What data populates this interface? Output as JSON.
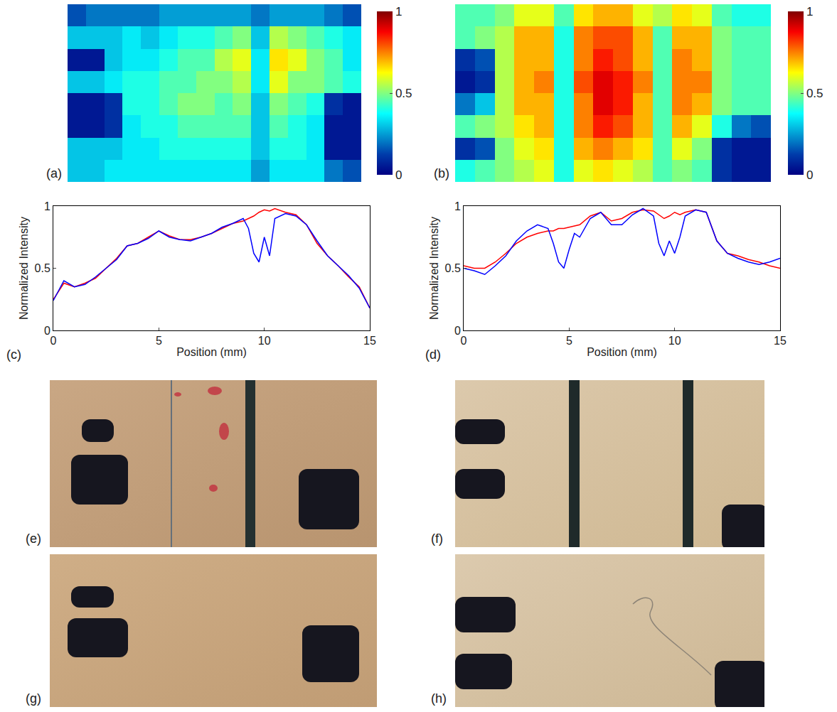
{
  "chart_data": [
    {
      "type": "heatmap",
      "panel_label": "(a)",
      "tick_labels": false,
      "zlim": [
        0,
        1
      ],
      "zticks": [
        0,
        0.5,
        1
      ],
      "z": [
        [
          0.15,
          0.2,
          0.2,
          0.2,
          0.2,
          0.25,
          0.25,
          0.25,
          0.25,
          0.25,
          0.2,
          0.25,
          0.25,
          0.25,
          0.2,
          0.15
        ],
        [
          0.3,
          0.3,
          0.3,
          0.35,
          0.3,
          0.35,
          0.4,
          0.4,
          0.45,
          0.5,
          0.3,
          0.55,
          0.5,
          0.45,
          0.4,
          0.35
        ],
        [
          0.05,
          0.05,
          0.3,
          0.35,
          0.35,
          0.4,
          0.45,
          0.45,
          0.55,
          0.6,
          0.35,
          0.65,
          0.6,
          0.5,
          0.45,
          0.35
        ],
        [
          0.3,
          0.3,
          0.35,
          0.4,
          0.4,
          0.45,
          0.45,
          0.5,
          0.5,
          0.55,
          0.35,
          0.6,
          0.5,
          0.5,
          0.45,
          0.4
        ],
        [
          0.05,
          0.05,
          0.1,
          0.4,
          0.4,
          0.45,
          0.5,
          0.5,
          0.45,
          0.5,
          0.3,
          0.5,
          0.45,
          0.4,
          0.1,
          0.05
        ],
        [
          0.05,
          0.05,
          0.1,
          0.35,
          0.4,
          0.4,
          0.45,
          0.45,
          0.45,
          0.45,
          0.3,
          0.45,
          0.4,
          0.35,
          0.05,
          0.05
        ],
        [
          0.3,
          0.3,
          0.3,
          0.35,
          0.35,
          0.4,
          0.4,
          0.4,
          0.4,
          0.4,
          0.3,
          0.4,
          0.4,
          0.35,
          0.05,
          0.05
        ],
        [
          0.3,
          0.3,
          0.35,
          0.35,
          0.35,
          0.35,
          0.35,
          0.35,
          0.35,
          0.35,
          0.25,
          0.35,
          0.35,
          0.35,
          0.2,
          0.15
        ]
      ]
    },
    {
      "type": "heatmap",
      "panel_label": "(b)",
      "tick_labels": false,
      "zlim": [
        0,
        1
      ],
      "zticks": [
        0,
        0.5,
        1
      ],
      "z": [
        [
          0.45,
          0.45,
          0.5,
          0.6,
          0.6,
          0.45,
          0.65,
          0.7,
          0.7,
          0.6,
          0.55,
          0.65,
          0.6,
          0.45,
          0.4,
          0.4
        ],
        [
          0.45,
          0.5,
          0.55,
          0.7,
          0.7,
          0.4,
          0.75,
          0.8,
          0.8,
          0.7,
          0.45,
          0.7,
          0.7,
          0.5,
          0.45,
          0.45
        ],
        [
          0.1,
          0.15,
          0.55,
          0.7,
          0.7,
          0.4,
          0.75,
          0.85,
          0.8,
          0.7,
          0.45,
          0.75,
          0.7,
          0.5,
          0.45,
          0.45
        ],
        [
          0.05,
          0.1,
          0.55,
          0.7,
          0.75,
          0.4,
          0.8,
          0.9,
          0.85,
          0.75,
          0.45,
          0.75,
          0.75,
          0.5,
          0.45,
          0.45
        ],
        [
          0.2,
          0.3,
          0.55,
          0.7,
          0.7,
          0.4,
          0.75,
          0.9,
          0.85,
          0.7,
          0.45,
          0.75,
          0.7,
          0.5,
          0.45,
          0.45
        ],
        [
          0.45,
          0.5,
          0.55,
          0.65,
          0.7,
          0.4,
          0.75,
          0.85,
          0.8,
          0.7,
          0.45,
          0.7,
          0.6,
          0.4,
          0.2,
          0.15
        ],
        [
          0.1,
          0.15,
          0.5,
          0.6,
          0.65,
          0.4,
          0.7,
          0.75,
          0.7,
          0.65,
          0.45,
          0.6,
          0.5,
          0.1,
          0.05,
          0.05
        ],
        [
          0.4,
          0.45,
          0.5,
          0.55,
          0.6,
          0.4,
          0.6,
          0.65,
          0.6,
          0.55,
          0.45,
          0.5,
          0.45,
          0.1,
          0.05,
          0.05
        ]
      ]
    },
    {
      "type": "line",
      "panel_label": "(c)",
      "x_label": "Position (mm)",
      "y_label": "Normalized Intensity",
      "xlim": [
        0,
        15
      ],
      "xticks": [
        0,
        5,
        10,
        15
      ],
      "ylim": [
        0,
        1
      ],
      "yticks": [
        0,
        0.5,
        1
      ],
      "grid": false,
      "x": [
        0,
        0.5,
        1,
        1.5,
        2,
        2.5,
        3,
        3.5,
        4,
        4.5,
        5,
        5.5,
        6,
        6.5,
        7,
        7.5,
        8,
        8.5,
        9,
        9.25,
        9.5,
        9.75,
        10,
        10.25,
        10.5,
        11,
        11.5,
        12,
        12.5,
        13,
        13.5,
        14,
        14.5,
        15
      ],
      "series": [
        {
          "color": "#ff0000",
          "values": [
            0.25,
            0.38,
            0.35,
            0.38,
            0.42,
            0.5,
            0.58,
            0.68,
            0.7,
            0.75,
            0.8,
            0.76,
            0.73,
            0.73,
            0.75,
            0.78,
            0.82,
            0.86,
            0.88,
            0.9,
            0.92,
            0.95,
            0.97,
            0.96,
            0.98,
            0.95,
            0.93,
            0.85,
            0.7,
            0.6,
            0.52,
            0.43,
            0.35,
            0.18
          ]
        },
        {
          "color": "#0000ff",
          "values": [
            0.24,
            0.4,
            0.35,
            0.37,
            0.43,
            0.5,
            0.57,
            0.68,
            0.7,
            0.74,
            0.8,
            0.75,
            0.73,
            0.72,
            0.75,
            0.78,
            0.83,
            0.86,
            0.9,
            0.82,
            0.62,
            0.55,
            0.75,
            0.6,
            0.9,
            0.94,
            0.92,
            0.85,
            0.72,
            0.6,
            0.52,
            0.44,
            0.34,
            0.18
          ]
        }
      ]
    },
    {
      "type": "line",
      "panel_label": "(d)",
      "x_label": "Position (mm)",
      "y_label": "Normalized Intensity",
      "xlim": [
        0,
        15
      ],
      "xticks": [
        0,
        5,
        10,
        15
      ],
      "ylim": [
        0,
        1
      ],
      "yticks": [
        0,
        0.5,
        1
      ],
      "grid": false,
      "x": [
        0,
        0.5,
        1,
        1.5,
        2,
        2.5,
        3,
        3.5,
        4,
        4.25,
        4.5,
        4.75,
        5,
        5.25,
        5.5,
        6,
        6.5,
        7,
        7.5,
        8,
        8.5,
        9,
        9.25,
        9.5,
        9.75,
        10,
        10.25,
        10.5,
        11,
        11.5,
        12,
        12.5,
        13,
        13.5,
        14,
        14.5,
        15
      ],
      "series": [
        {
          "color": "#ff0000",
          "values": [
            0.52,
            0.5,
            0.5,
            0.55,
            0.62,
            0.7,
            0.75,
            0.78,
            0.8,
            0.8,
            0.82,
            0.82,
            0.83,
            0.84,
            0.85,
            0.92,
            0.95,
            0.88,
            0.9,
            0.95,
            0.97,
            0.96,
            0.93,
            0.9,
            0.92,
            0.95,
            0.93,
            0.95,
            0.97,
            0.95,
            0.72,
            0.62,
            0.6,
            0.57,
            0.55,
            0.52,
            0.5
          ]
        },
        {
          "color": "#0000ff",
          "values": [
            0.5,
            0.48,
            0.45,
            0.52,
            0.6,
            0.72,
            0.8,
            0.85,
            0.82,
            0.7,
            0.55,
            0.5,
            0.65,
            0.78,
            0.75,
            0.9,
            0.95,
            0.85,
            0.85,
            0.93,
            0.98,
            0.92,
            0.7,
            0.6,
            0.72,
            0.62,
            0.75,
            0.92,
            0.97,
            0.95,
            0.72,
            0.62,
            0.58,
            0.55,
            0.53,
            0.55,
            0.58
          ]
        }
      ]
    }
  ],
  "photos": [
    {
      "panel_label": "(e)"
    },
    {
      "panel_label": "(f)"
    },
    {
      "panel_label": "(g)"
    },
    {
      "panel_label": "(h)"
    }
  ]
}
